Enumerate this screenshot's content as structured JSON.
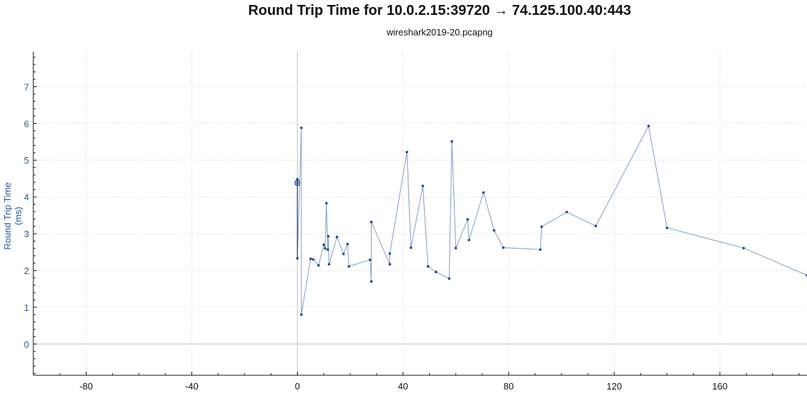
{
  "title": "Round Trip Time for 10.0.2.15:39720 → 74.125.100.40:443",
  "subtitle": "wireshark2019-20.pcapng",
  "chart_data": {
    "type": "line",
    "title": "Round Trip Time for 10.0.2.15:39720 → 74.125.100.40:443",
    "subtitle": "wireshark2019-20.pcapng",
    "xlabel": "",
    "ylabel": "Round Trip Time (ms)",
    "xlim": [
      -100,
      193
    ],
    "ylim": [
      -0.85,
      7.95
    ],
    "xticks": [
      -80,
      -40,
      0,
      40,
      80,
      120,
      160
    ],
    "yticks": [
      0,
      1,
      2,
      3,
      4,
      5,
      6,
      7
    ],
    "grid": true,
    "line_color": "#7f9ec4",
    "point_color": "#1f4a8a",
    "selected_point": [
      0,
      4.38
    ],
    "x": [
      0,
      0,
      0,
      1.5,
      1.5,
      5,
      6,
      8,
      10,
      10.5,
      11,
      11.5,
      11.7,
      12,
      15,
      17.5,
      19,
      19.5,
      27.5,
      28,
      28,
      35,
      35,
      41.5,
      43,
      47.5,
      49.5,
      52.5,
      57.5,
      58.5,
      60,
      64.5,
      65,
      70.5,
      74.5,
      78,
      92,
      92.5,
      102,
      113,
      133,
      140,
      169,
      193
    ],
    "values": [
      4.38,
      4.48,
      2.33,
      5.88,
      0.8,
      2.32,
      2.3,
      2.14,
      2.7,
      2.6,
      3.83,
      2.57,
      2.93,
      2.17,
      2.91,
      2.45,
      2.72,
      2.11,
      2.29,
      1.7,
      3.32,
      2.17,
      2.46,
      5.22,
      2.62,
      4.3,
      2.11,
      1.96,
      1.78,
      5.51,
      2.61,
      3.39,
      2.83,
      4.12,
      3.09,
      2.62,
      2.57,
      3.19,
      3.59,
      3.21,
      5.93,
      3.16,
      2.61,
      1.87
    ]
  }
}
